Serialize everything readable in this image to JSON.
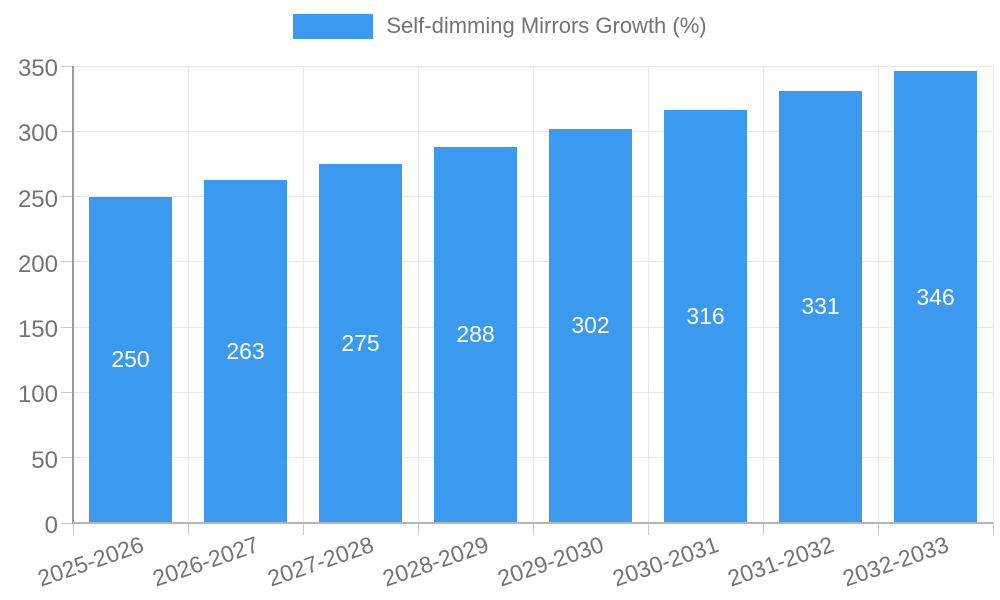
{
  "legend": {
    "label": "Self-dimming Mirrors Growth (%)"
  },
  "chart_data": {
    "type": "bar",
    "title": "Self-dimming Mirrors Growth (%)",
    "categories": [
      "2025-2026",
      "2026-2027",
      "2027-2028",
      "2028-2029",
      "2029-2030",
      "2030-2031",
      "2031-2032",
      "2032-2033"
    ],
    "values": [
      250,
      263,
      275,
      288,
      302,
      316,
      331,
      346
    ],
    "bar_labels": [
      "250",
      "263",
      "275",
      "288",
      "302",
      "316",
      "331",
      "346"
    ],
    "xlabel": "",
    "ylabel": "",
    "ylim": [
      0,
      350
    ],
    "yticks": [
      0,
      50,
      100,
      150,
      200,
      250,
      300,
      350
    ],
    "grid": true,
    "legend_position": "top-center",
    "colors": {
      "bar": "#3B99EE",
      "bar_label": "#ffffff",
      "gridline": "#e7e7e7",
      "axis_text": "#737373",
      "axis_line": "#9a9a9a"
    }
  }
}
